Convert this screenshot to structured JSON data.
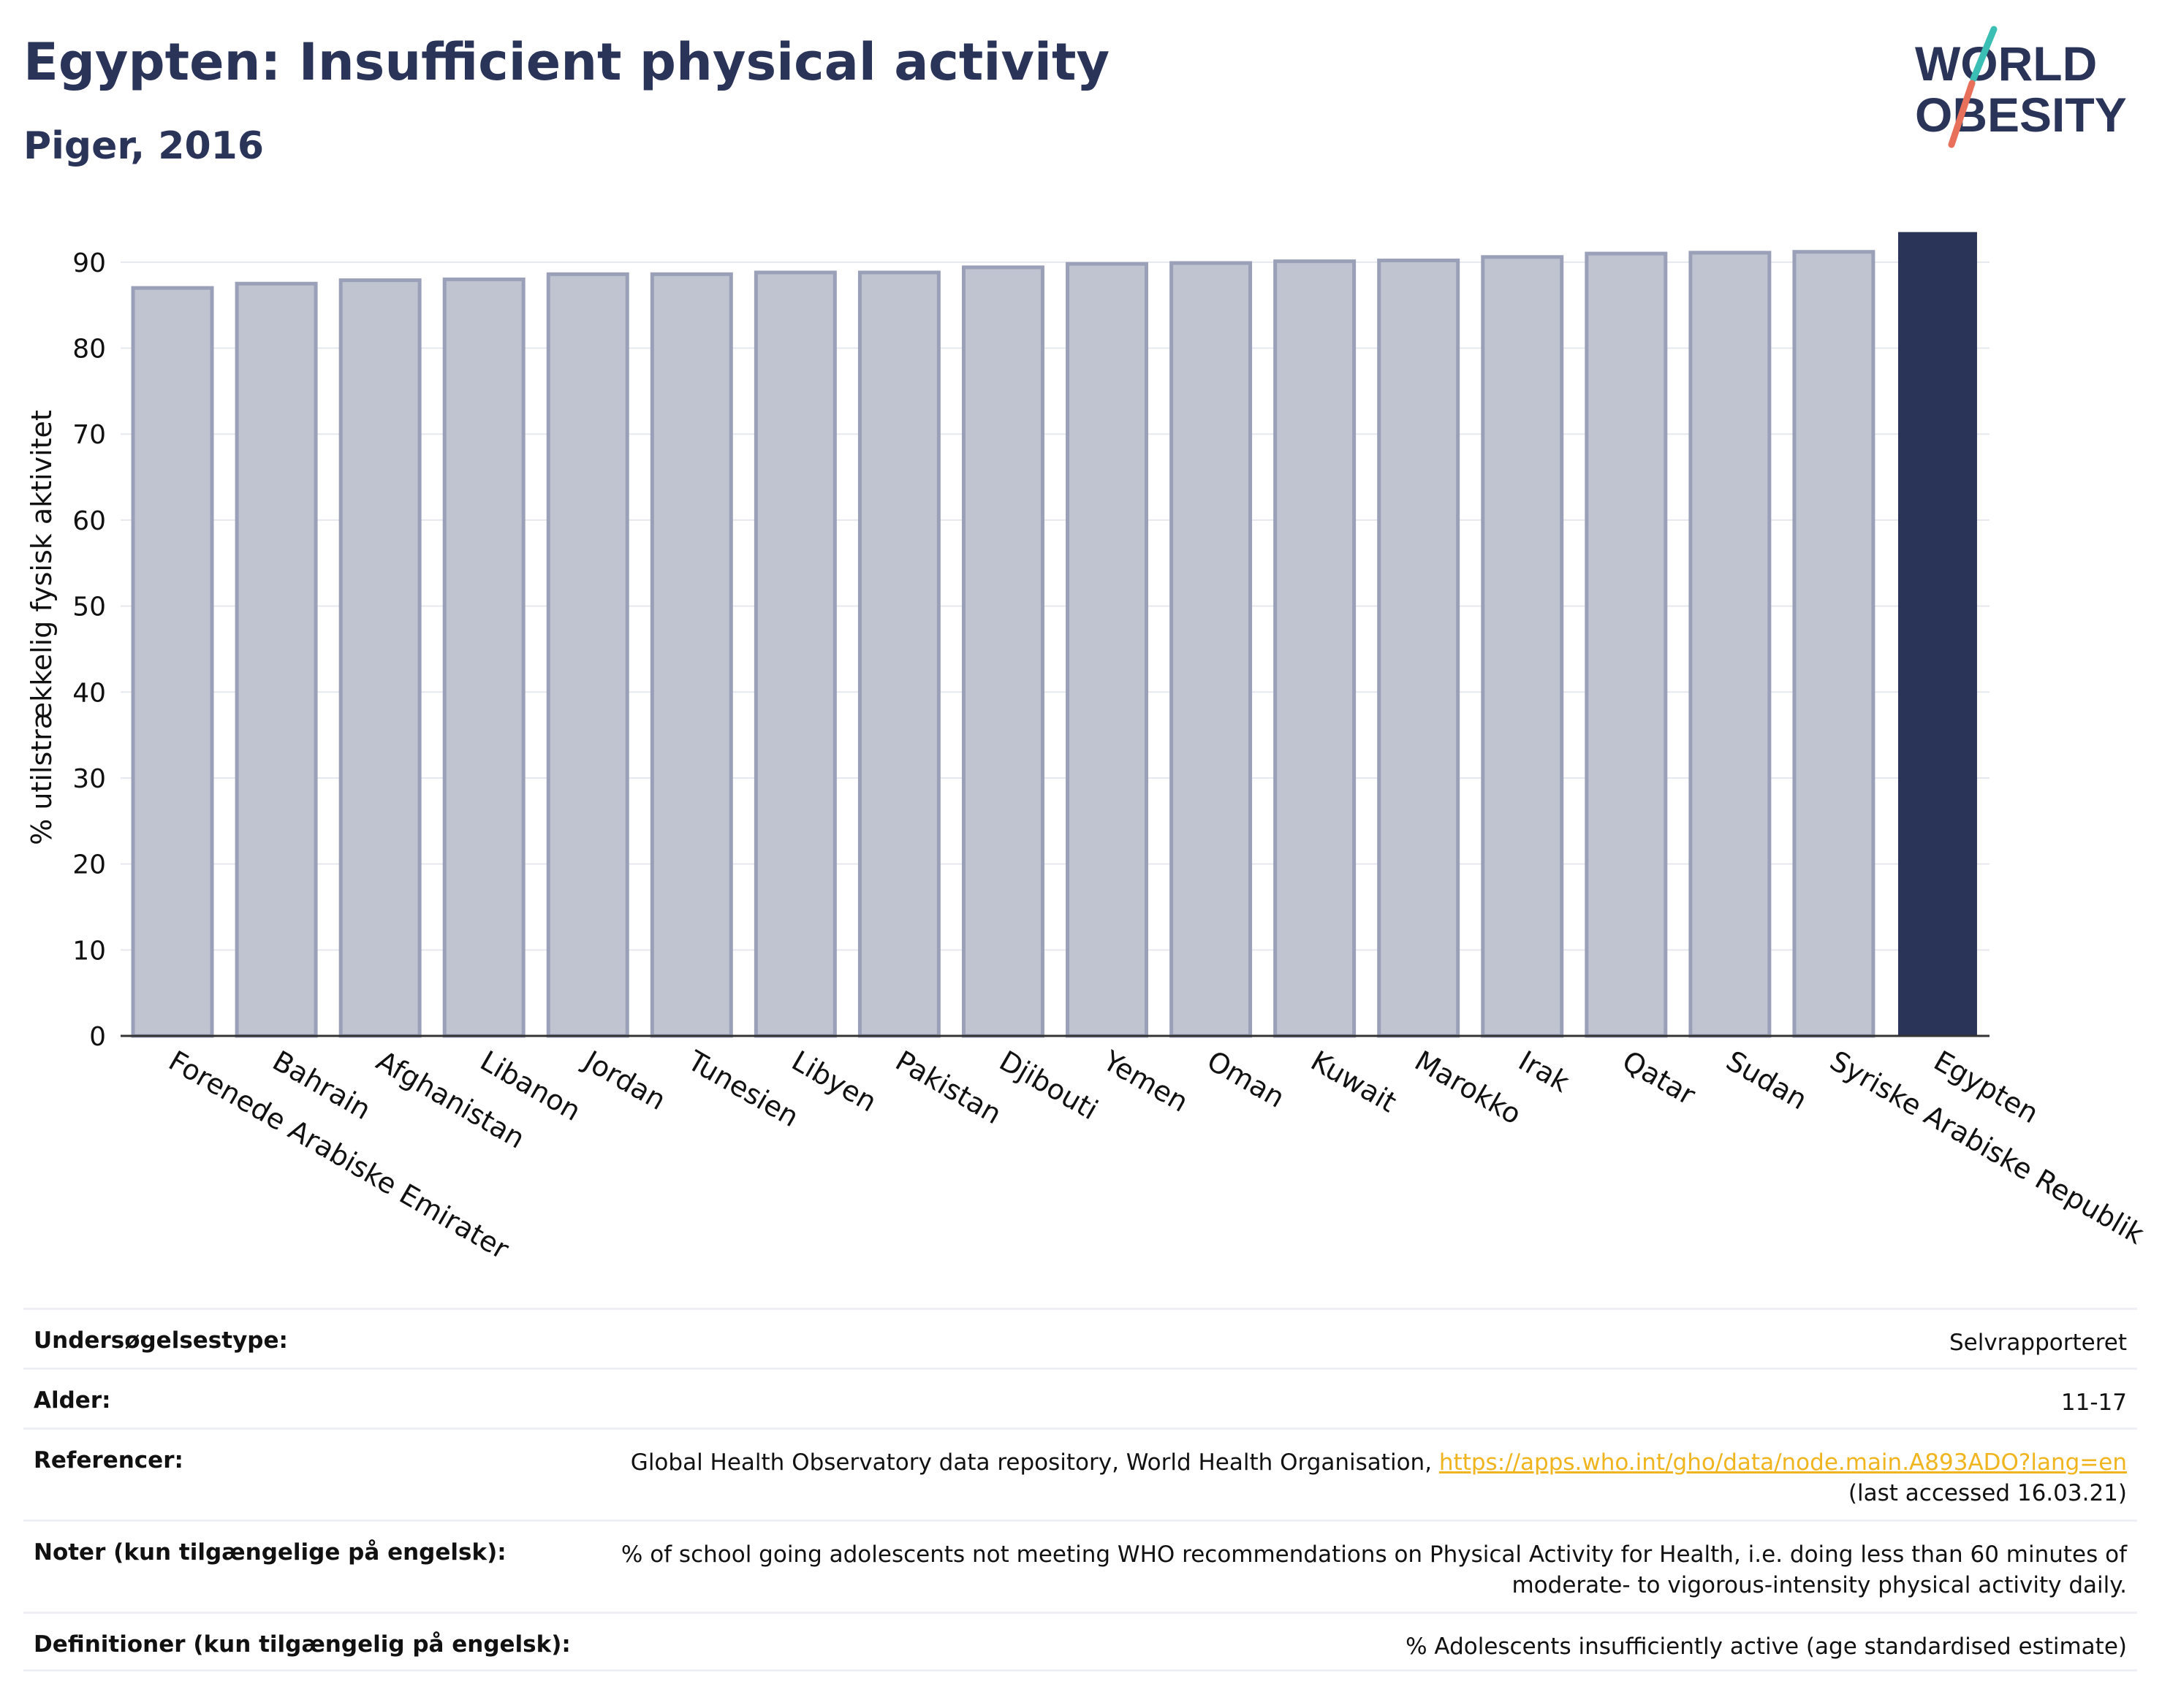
{
  "header": {
    "title": "Egypten: Insufficient physical activity",
    "subtitle": "Piger, 2016",
    "logo_line1": "WORLD",
    "logo_line2": "OBESITY"
  },
  "chart_data": {
    "type": "bar",
    "categories": [
      "Forenede Arabiske Emirater",
      "Bahrain",
      "Afghanistan",
      "Libanon",
      "Jordan",
      "Tunesien",
      "Libyen",
      "Pakistan",
      "Djibouti",
      "Yemen",
      "Oman",
      "Kuwait",
      "Marokko",
      "Irak",
      "Qatar",
      "Sudan",
      "Syriske Arabiske Republik",
      "Egypten"
    ],
    "values": [
      87.0,
      87.5,
      87.9,
      88.0,
      88.6,
      88.6,
      88.8,
      88.8,
      89.4,
      89.8,
      89.9,
      90.1,
      90.2,
      90.6,
      91.0,
      91.1,
      91.2,
      93.5
    ],
    "highlight": "Egypten",
    "xlabel": "",
    "ylabel": "% utilstrækkelig fysisk aktivitet",
    "ylim": [
      0,
      95
    ],
    "yticks": [
      0,
      10,
      20,
      30,
      40,
      50,
      60,
      70,
      80,
      90
    ],
    "grid": true,
    "colors": {
      "bar": "#c0c3d0",
      "bar_edge": "#9aa0b8",
      "highlight": "#2a3358"
    }
  },
  "meta": {
    "rows": [
      {
        "label": "Undersøgelsestype:",
        "value": "Selvrapporteret"
      },
      {
        "label": "Alder:",
        "value": "11-17"
      },
      {
        "label": "Referencer:",
        "value": "Global Health Observatory data repository, World Health Organisation,",
        "link": "https://apps.who.int/gho/data/node.main.A893ADO?lang=en",
        "value2": "(last accessed 16.03.21)"
      },
      {
        "label": "Noter (kun tilgængelige på engelsk):",
        "value": "% of school going adolescents not meeting WHO recommendations on Physical Activity for Health, i.e. doing less than 60 minutes of",
        "value2": "moderate- to vigorous-intensity physical activity daily."
      },
      {
        "label": "Definitioner (kun tilgængelig på engelsk):",
        "value": "% Adolescents insufficiently active (age standardised estimate)"
      }
    ]
  }
}
